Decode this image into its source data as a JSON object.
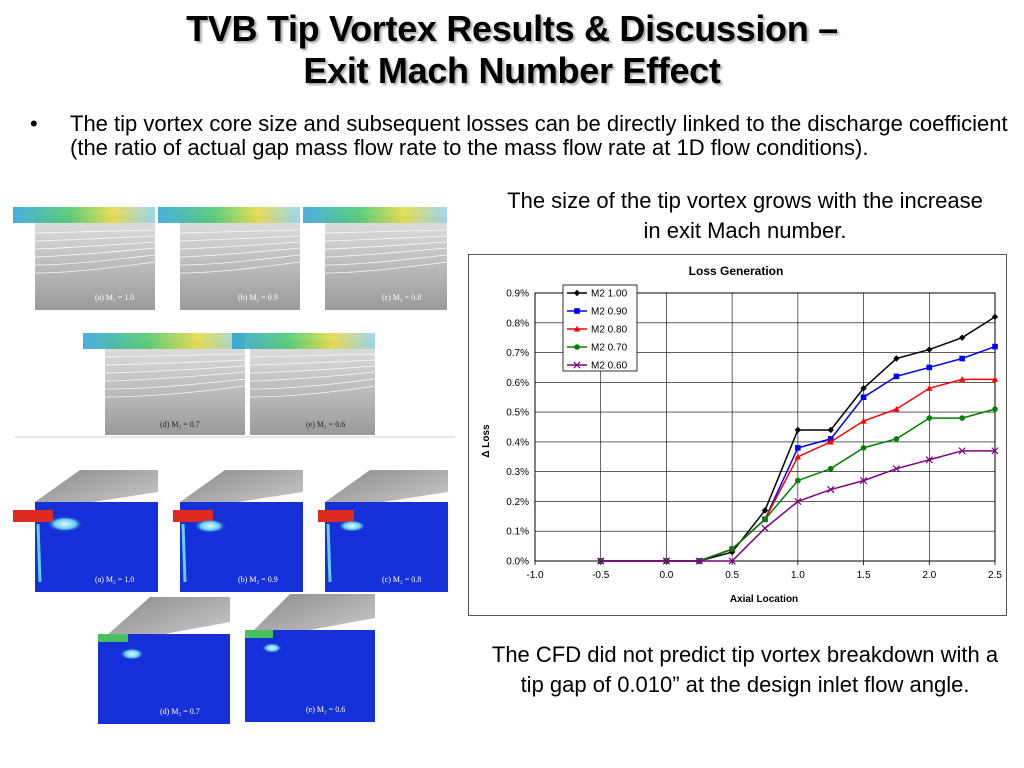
{
  "slide": {
    "title_line1": "TVB Tip Vortex Results & Discussion –",
    "title_line2": "Exit Mach Number Effect",
    "bullet": "The tip vortex core size and subsequent losses can be directly linked to the discharge coefficient (the ratio of actual gap mass flow rate to the mass flow rate at 1D flow conditions).",
    "caption_top": "The size of the tip vortex grows with the increase in exit Mach number.",
    "caption_bottom": "The CFD did not predict tip vortex breakdown with a tip gap of 0.010” at the design inlet flow angle."
  },
  "streamline_panels": [
    {
      "label": "(a) M₂ = 1.0"
    },
    {
      "label": "(b) M₂ = 0.9"
    },
    {
      "label": "(c) M₂ = 0.8"
    },
    {
      "label": "(d) M₂ = 0.7"
    },
    {
      "label": "(e) M₂ = 0.6"
    }
  ],
  "contour_panels": [
    {
      "label": "(a) M₂ = 1.0"
    },
    {
      "label": "(b) M₂ = 0.9"
    },
    {
      "label": "(c) M₂ = 0.8"
    },
    {
      "label": "(d) M₂ = 0.7"
    },
    {
      "label": "(e) M₂ = 0.6"
    }
  ],
  "chart_data": {
    "type": "line",
    "title": "Loss Generation",
    "xlabel": "Axial Location",
    "ylabel": "Δ Loss",
    "xlim": [
      -1.0,
      2.5
    ],
    "ylim": [
      0.0,
      0.009
    ],
    "xticks": [
      "-1.0",
      "-0.5",
      "0.0",
      "0.5",
      "1.0",
      "1.5",
      "2.0",
      "2.5"
    ],
    "yticks": [
      "0.0%",
      "0.1%",
      "0.2%",
      "0.3%",
      "0.4%",
      "0.5%",
      "0.6%",
      "0.7%",
      "0.8%",
      "0.9%"
    ],
    "grid": true,
    "legend_position": "top-left",
    "series": [
      {
        "name": "M2 1.00",
        "color": "#000000",
        "marker": "diamond",
        "x": [
          -0.5,
          0.0,
          0.25,
          0.5,
          0.75,
          1.0,
          1.25,
          1.5,
          1.75,
          2.0,
          2.25,
          2.5
        ],
        "y": [
          0.0,
          0.0,
          0.0,
          0.0003,
          0.0017,
          0.0044,
          0.0044,
          0.0058,
          0.0068,
          0.0071,
          0.0075,
          0.0082
        ]
      },
      {
        "name": "M2 0.90",
        "color": "#0000ff",
        "marker": "square",
        "x": [
          -0.5,
          0.0,
          0.25,
          0.5,
          0.75,
          1.0,
          1.25,
          1.5,
          1.75,
          2.0,
          2.25,
          2.5
        ],
        "y": [
          0.0,
          0.0,
          0.0,
          0.0004,
          0.0014,
          0.0038,
          0.0041,
          0.0055,
          0.0062,
          0.0065,
          0.0068,
          0.0072
        ]
      },
      {
        "name": "M2 0.80",
        "color": "#ff0000",
        "marker": "triangle",
        "x": [
          -0.5,
          0.0,
          0.25,
          0.5,
          0.75,
          1.0,
          1.25,
          1.5,
          1.75,
          2.0,
          2.25,
          2.5
        ],
        "y": [
          0.0,
          0.0,
          0.0,
          0.0004,
          0.0014,
          0.0035,
          0.004,
          0.0047,
          0.0051,
          0.0058,
          0.0061,
          0.0061
        ]
      },
      {
        "name": "M2 0.70",
        "color": "#008000",
        "marker": "circle",
        "x": [
          -0.5,
          0.0,
          0.25,
          0.5,
          0.75,
          1.0,
          1.25,
          1.5,
          1.75,
          2.0,
          2.25,
          2.5
        ],
        "y": [
          0.0,
          0.0,
          0.0,
          0.0004,
          0.0014,
          0.0027,
          0.0031,
          0.0038,
          0.0041,
          0.0048,
          0.0048,
          0.0051
        ]
      },
      {
        "name": "M2 0.60",
        "color": "#800080",
        "marker": "x",
        "x": [
          -0.5,
          0.0,
          0.25,
          0.5,
          0.75,
          1.0,
          1.25,
          1.5,
          1.75,
          2.0,
          2.25,
          2.5
        ],
        "y": [
          0.0,
          0.0,
          0.0,
          0.0,
          0.0011,
          0.002,
          0.0024,
          0.0027,
          0.0031,
          0.0034,
          0.0037,
          0.0037
        ]
      }
    ]
  }
}
